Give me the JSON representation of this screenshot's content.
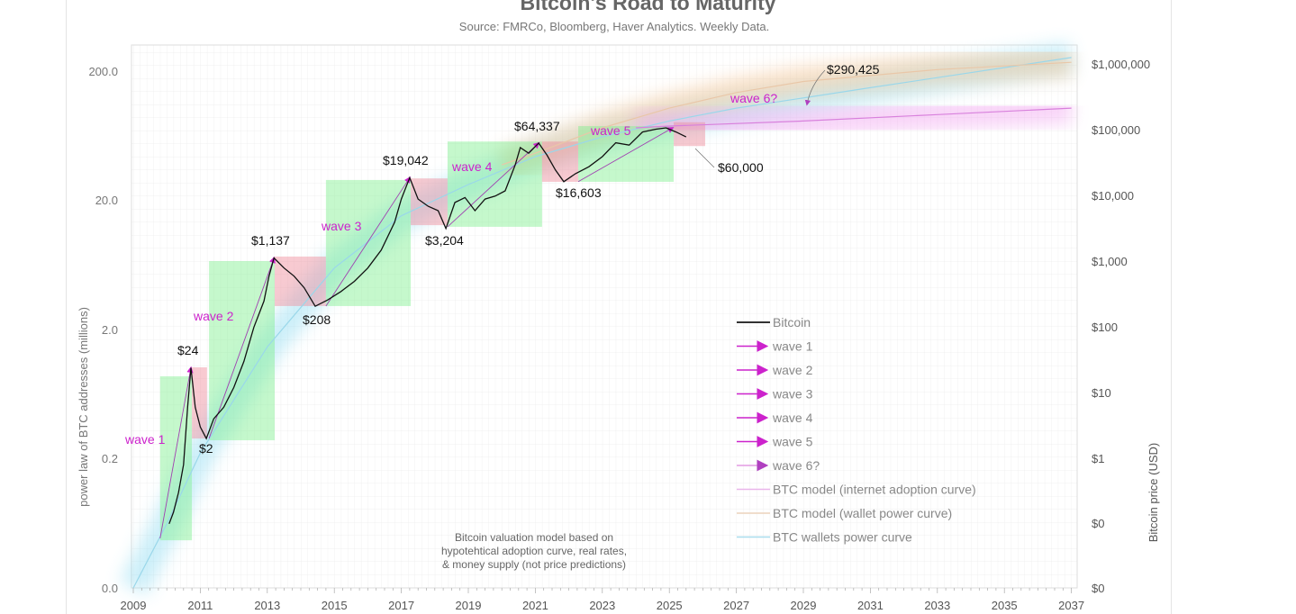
{
  "chart_data": {
    "type": "line",
    "title": "Bitcoin's Road to Maturity",
    "subtitle": "Source: FMRCo, Bloomberg, Haver Analytics. Weekly Data.",
    "ylabel_left": "power law of BTC addresses (millions)",
    "ylabel_right": "Bitcoin price (USD)",
    "xlim": [
      2009,
      2037
    ],
    "x_ticks": [
      "2009",
      "2011",
      "2013",
      "2015",
      "2017",
      "2019",
      "2021",
      "2023",
      "2025",
      "2027",
      "2029",
      "2031",
      "2033",
      "2035",
      "2037"
    ],
    "left_ticks": [
      "0.0",
      "0.2",
      "2.0",
      "20.0",
      "200.0"
    ],
    "right_ticks": [
      "$0",
      "$0",
      "$1",
      "$10",
      "$100",
      "$1,000",
      "$10,000",
      "$100,000",
      "$1,000,000"
    ],
    "grid": true,
    "legend_position": "bottom-right",
    "legend": [
      {
        "label": "Bitcoin",
        "type": "line",
        "color": "#333333"
      },
      {
        "label": "wave 1",
        "type": "arrow",
        "color": "#cc22cc"
      },
      {
        "label": "wave 2",
        "type": "arrow",
        "color": "#cc22cc"
      },
      {
        "label": "wave 3",
        "type": "arrow",
        "color": "#cc22cc"
      },
      {
        "label": "wave 4",
        "type": "arrow",
        "color": "#cc22cc"
      },
      {
        "label": "wave 5",
        "type": "arrow",
        "color": "#cc22cc"
      },
      {
        "label": "wave 6?",
        "type": "arrow",
        "color": "#e39be3"
      },
      {
        "label": "BTC model (internet adoption curve)",
        "type": "line",
        "color": "#e9b5ea"
      },
      {
        "label": "BTC model (wallet power curve)",
        "type": "line",
        "color": "#ecd2bb"
      },
      {
        "label": "BTC wallets power curve",
        "type": "line",
        "color": "#a9ddee"
      }
    ],
    "note": [
      "Bitcoin valuation model based on",
      "hypotehtical adoption curve, real rates,",
      "& money supply (not price predictions)"
    ],
    "bitcoin_price": [
      [
        2010.07,
        0.1
      ],
      [
        2010.2,
        0.15
      ],
      [
        2010.35,
        0.3
      ],
      [
        2010.5,
        0.8
      ],
      [
        2010.62,
        6
      ],
      [
        2010.72,
        24
      ],
      [
        2010.85,
        6
      ],
      [
        2011.0,
        3
      ],
      [
        2011.18,
        2
      ],
      [
        2011.4,
        4
      ],
      [
        2011.7,
        6
      ],
      [
        2012.0,
        12
      ],
      [
        2012.3,
        30
      ],
      [
        2012.6,
        100
      ],
      [
        2012.9,
        250
      ],
      [
        2013.05,
        600
      ],
      [
        2013.2,
        1137
      ],
      [
        2013.5,
        800
      ],
      [
        2013.8,
        600
      ],
      [
        2014.1,
        400
      ],
      [
        2014.43,
        208
      ],
      [
        2014.8,
        260
      ],
      [
        2015.2,
        350
      ],
      [
        2015.6,
        500
      ],
      [
        2016.0,
        800
      ],
      [
        2016.4,
        1500
      ],
      [
        2016.8,
        4000
      ],
      [
        2017.0,
        9000
      ],
      [
        2017.25,
        19042
      ],
      [
        2017.5,
        9000
      ],
      [
        2017.8,
        7000
      ],
      [
        2018.1,
        6000
      ],
      [
        2018.33,
        3204
      ],
      [
        2018.6,
        8000
      ],
      [
        2018.9,
        9500
      ],
      [
        2019.2,
        6000
      ],
      [
        2019.5,
        9000
      ],
      [
        2019.8,
        10000
      ],
      [
        2020.1,
        12000
      ],
      [
        2020.4,
        30000
      ],
      [
        2020.55,
        55000
      ],
      [
        2020.8,
        45000
      ],
      [
        2021.1,
        64337
      ],
      [
        2021.35,
        42000
      ],
      [
        2021.6,
        25000
      ],
      [
        2021.85,
        16603
      ],
      [
        2022.2,
        22000
      ],
      [
        2022.6,
        28000
      ],
      [
        2023.0,
        40000
      ],
      [
        2023.4,
        65000
      ],
      [
        2023.8,
        60000
      ],
      [
        2024.2,
        95000
      ],
      [
        2024.6,
        105000
      ],
      [
        2024.9,
        110000
      ],
      [
        2025.2,
        95000
      ],
      [
        2025.5,
        80000
      ]
    ],
    "wave_boxes": [
      {
        "kind": "rise",
        "x": [
          2009.8,
          2010.75
        ],
        "price": [
          0.056,
          17.8
        ]
      },
      {
        "kind": "fall",
        "x": [
          2010.75,
          2011.2
        ],
        "price": [
          2.0,
          24.4
        ]
      },
      {
        "kind": "rise",
        "x": [
          2011.26,
          2013.22
        ],
        "price": [
          1.88,
          1020
        ]
      },
      {
        "kind": "fall",
        "x": [
          2013.22,
          2014.75
        ],
        "price": [
          210,
          1195
        ]
      },
      {
        "kind": "rise",
        "x": [
          2014.75,
          2017.28
        ],
        "price": [
          210,
          17600
        ]
      },
      {
        "kind": "fall",
        "x": [
          2017.28,
          2018.38
        ],
        "price": [
          3600,
          18600
        ]
      },
      {
        "kind": "rise",
        "x": [
          2018.38,
          2021.2
        ],
        "price": [
          3400,
          68000
        ]
      },
      {
        "kind": "fall",
        "x": [
          2021.2,
          2022.28
        ],
        "price": [
          16500,
          68000
        ]
      },
      {
        "kind": "rise",
        "x": [
          2022.28,
          2025.13
        ],
        "price": [
          16500,
          117000
        ]
      },
      {
        "kind": "fall",
        "x": [
          2025.13,
          2026.07
        ],
        "price": [
          58000,
          134000
        ]
      }
    ],
    "waves": [
      {
        "label": "wave 1",
        "from": [
          2009.8,
          0.06
        ],
        "to": [
          2010.72,
          24
        ]
      },
      {
        "label": "wave 2",
        "from": [
          2011.26,
          2
        ],
        "to": [
          2013.2,
          1137
        ]
      },
      {
        "label": "wave 3",
        "from": [
          2014.75,
          210
        ],
        "to": [
          2017.25,
          19042
        ]
      },
      {
        "label": "wave 4",
        "from": [
          2018.38,
          3400
        ],
        "to": [
          2021.1,
          64337
        ]
      },
      {
        "label": "wave 5",
        "from": [
          2022.28,
          16600
        ],
        "to": [
          2025.1,
          110000
        ]
      },
      {
        "label": "wave 6?",
        "from": [
          2026.07,
          60000
        ],
        "to": [
          2029.3,
          290425
        ]
      }
    ],
    "price_labels": [
      "$24",
      "$2",
      "$1,137",
      "$208",
      "$19,042",
      "$3,204",
      "$64,337",
      "$16,603",
      "$60,000",
      "$290,425"
    ],
    "model_wallets_power_curve": [
      [
        2009,
        0.0105
      ],
      [
        2010,
        0.1
      ],
      [
        2011,
        1.2
      ],
      [
        2013,
        50
      ],
      [
        2015,
        800
      ],
      [
        2017,
        5000
      ],
      [
        2019,
        15000
      ],
      [
        2021,
        40000
      ],
      [
        2023,
        80000
      ],
      [
        2025,
        140000
      ],
      [
        2027,
        220000
      ],
      [
        2031,
        450000
      ],
      [
        2037,
        1300000
      ]
    ],
    "model_wallet_power_curve": [
      [
        2020,
        30000
      ],
      [
        2021,
        45000
      ],
      [
        2023,
        110000
      ],
      [
        2025,
        220000
      ],
      [
        2027,
        380000
      ],
      [
        2029,
        560000
      ],
      [
        2033,
        850000
      ],
      [
        2037,
        1100000
      ]
    ],
    "model_internet_adoption_curve": [
      [
        2024,
        110000
      ],
      [
        2025,
        117000
      ],
      [
        2029,
        140000
      ],
      [
        2033,
        175000
      ],
      [
        2037,
        220000
      ]
    ]
  }
}
